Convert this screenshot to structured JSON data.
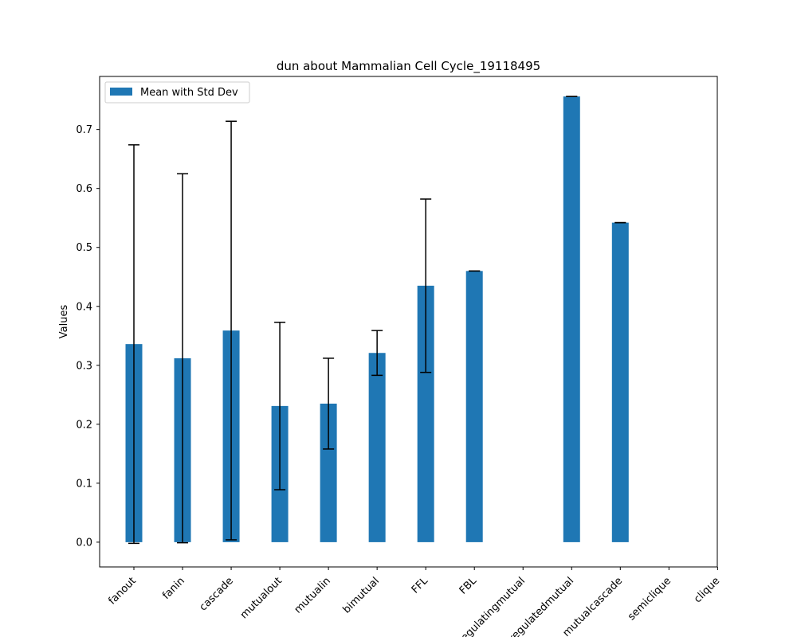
{
  "chart_data": {
    "type": "bar",
    "title": "dun about Mammalian Cell Cycle_19118495",
    "xlabel": "",
    "ylabel": "Values",
    "categories": [
      "fanout",
      "fanin",
      "cascade",
      "mutualout",
      "mutualin",
      "bimutual",
      "FFL",
      "FBL",
      "regulatingmutual",
      "regulatedmutual",
      "mutualcascade",
      "semiclique",
      "clique"
    ],
    "series": [
      {
        "name": "Mean with Std Dev",
        "color": "#1f77b4",
        "values": [
          0.336,
          0.312,
          0.359,
          0.231,
          0.235,
          0.321,
          0.435,
          0.46,
          null,
          0.756,
          0.542,
          null,
          null
        ],
        "std": [
          0.338,
          0.313,
          0.355,
          0.142,
          0.077,
          0.038,
          0.147,
          0.0,
          null,
          0.0,
          0.0,
          null,
          null
        ]
      }
    ],
    "ylim": [
      -0.042,
      0.79
    ],
    "yticks": [
      0.0,
      0.1,
      0.2,
      0.3,
      0.4,
      0.5,
      0.6,
      0.7
    ],
    "ytick_labels": [
      "0.0",
      "0.1",
      "0.2",
      "0.3",
      "0.4",
      "0.5",
      "0.6",
      "0.7"
    ],
    "grid": false,
    "legend_placement": "upper-left"
  }
}
